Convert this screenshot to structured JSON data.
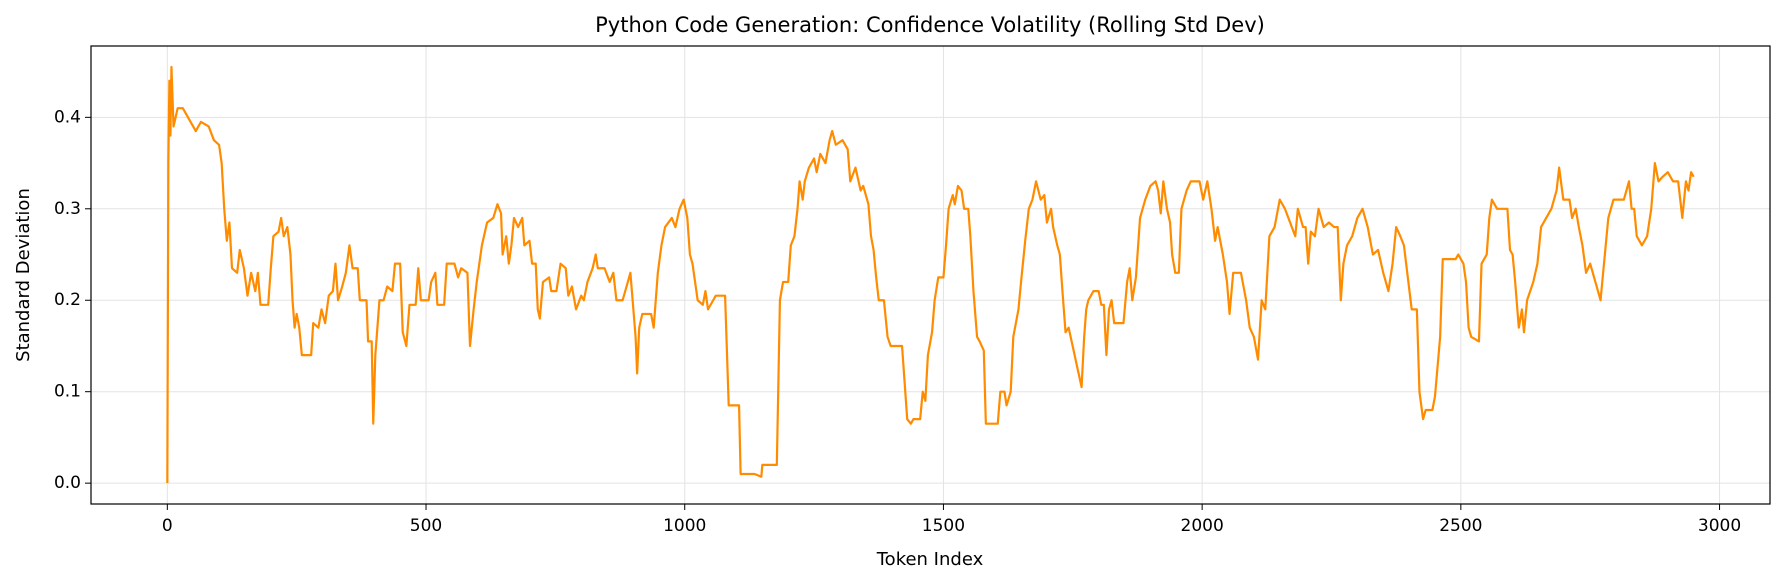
{
  "chart_data": {
    "type": "line",
    "title": "Python Code Generation: Confidence Volatility (Rolling Std Dev)",
    "x_label": "Token Index",
    "y_label": "Standard Deviation",
    "xlim": [
      -147.5,
      3097.5
    ],
    "xticks": [
      0,
      500,
      1000,
      1500,
      2000,
      2500,
      3000
    ],
    "ylim": [
      -0.0228,
      0.478
    ],
    "yticks": [
      {
        "value": 0,
        "label": "0.0"
      },
      0.1,
      0.2,
      0.3,
      0.4
    ],
    "grid": true,
    "x": [
      0,
      2,
      4,
      6,
      8,
      12,
      20,
      30,
      45,
      55,
      65,
      80,
      90,
      100,
      105,
      110,
      115,
      120,
      125,
      135,
      140,
      148,
      155,
      162,
      170,
      175,
      180,
      195,
      200,
      205,
      215,
      220,
      225,
      232,
      238,
      242,
      246,
      250,
      255,
      260,
      278,
      282,
      292,
      298,
      305,
      312,
      320,
      325,
      330,
      338,
      345,
      352,
      358,
      368,
      372,
      385,
      388,
      395,
      398,
      402,
      410,
      418,
      425,
      435,
      440,
      450,
      455,
      462,
      468,
      480,
      485,
      490,
      505,
      510,
      518,
      522,
      535,
      540,
      555,
      562,
      568,
      580,
      585,
      592,
      598,
      608,
      618,
      630,
      638,
      645,
      648,
      655,
      660,
      665,
      670,
      678,
      686,
      690,
      700,
      705,
      712,
      716,
      720,
      726,
      738,
      742,
      752,
      760,
      770,
      775,
      782,
      790,
      800,
      805,
      812,
      822,
      828,
      832,
      845,
      855,
      862,
      868,
      880,
      895,
      905,
      908,
      912,
      918,
      935,
      940,
      948,
      955,
      962,
      975,
      982,
      990,
      998,
      1005,
      1010,
      1015,
      1020,
      1025,
      1035,
      1040,
      1045,
      1055,
      1060,
      1078,
      1085,
      1105,
      1108,
      1135,
      1148,
      1150,
      1178,
      1184,
      1190,
      1200,
      1205,
      1212,
      1218,
      1222,
      1228,
      1232,
      1240,
      1250,
      1255,
      1262,
      1272,
      1280,
      1285,
      1292,
      1305,
      1315,
      1320,
      1330,
      1340,
      1345,
      1355,
      1360,
      1365,
      1370,
      1375,
      1385,
      1392,
      1398,
      1420,
      1430,
      1437,
      1442,
      1455,
      1460,
      1465,
      1470,
      1478,
      1483,
      1490,
      1500,
      1505,
      1510,
      1518,
      1522,
      1528,
      1535,
      1540,
      1548,
      1552,
      1558,
      1565,
      1570,
      1578,
      1582,
      1605,
      1610,
      1618,
      1622,
      1630,
      1635,
      1645,
      1650,
      1658,
      1665,
      1672,
      1679,
      1688,
      1695,
      1700,
      1708,
      1712,
      1720,
      1725,
      1730,
      1736,
      1742,
      1767,
      1772,
      1776,
      1780,
      1790,
      1800,
      1805,
      1810,
      1815,
      1820,
      1825,
      1830,
      1848,
      1855,
      1860,
      1865,
      1872,
      1880,
      1890,
      1900,
      1910,
      1915,
      1920,
      1925,
      1932,
      1938,
      1942,
      1948,
      1955,
      1960,
      1970,
      1978,
      1995,
      2002,
      2010,
      2018,
      2025,
      2030,
      2040,
      2048,
      2053,
      2060,
      2075,
      2085,
      2092,
      2100,
      2108,
      2115,
      2122,
      2130,
      2140,
      2150,
      2160,
      2170,
      2180,
      2185,
      2195,
      2200,
      2205,
      2210,
      2218,
      2225,
      2235,
      2245,
      2255,
      2262,
      2268,
      2273,
      2280,
      2290,
      2300,
      2310,
      2320,
      2330,
      2340,
      2350,
      2360,
      2368,
      2375,
      2383,
      2390,
      2405,
      2415,
      2420,
      2427,
      2432,
      2445,
      2450,
      2460,
      2465,
      2490,
      2495,
      2505,
      2510,
      2515,
      2520,
      2535,
      2540,
      2550,
      2555,
      2560,
      2570,
      2590,
      2595,
      2600,
      2605,
      2612,
      2618,
      2622,
      2628,
      2640,
      2648,
      2655,
      2665,
      2675,
      2685,
      2690,
      2698,
      2710,
      2715,
      2722,
      2728,
      2735,
      2742,
      2750,
      2760,
      2770,
      2775,
      2785,
      2795,
      2805,
      2815,
      2825,
      2830,
      2835,
      2840,
      2850,
      2860,
      2868,
      2875,
      2882,
      2890,
      2900,
      2910,
      2920,
      2928,
      2935,
      2940,
      2945,
      2950
    ],
    "series": [
      {
        "color": "#ff8c00",
        "values": [
          0,
          0.35,
          0.44,
          0.38,
          0.455,
          0.39,
          0.41,
          0.41,
          0.395,
          0.385,
          0.395,
          0.39,
          0.375,
          0.37,
          0.35,
          0.3,
          0.265,
          0.285,
          0.235,
          0.23,
          0.255,
          0.235,
          0.205,
          0.23,
          0.21,
          0.23,
          0.195,
          0.195,
          0.235,
          0.27,
          0.275,
          0.29,
          0.27,
          0.28,
          0.25,
          0.2,
          0.17,
          0.185,
          0.17,
          0.14,
          0.14,
          0.175,
          0.17,
          0.19,
          0.175,
          0.205,
          0.21,
          0.24,
          0.2,
          0.215,
          0.23,
          0.26,
          0.235,
          0.235,
          0.2,
          0.2,
          0.155,
          0.155,
          0.065,
          0.14,
          0.2,
          0.2,
          0.215,
          0.21,
          0.24,
          0.24,
          0.165,
          0.15,
          0.195,
          0.195,
          0.235,
          0.2,
          0.2,
          0.22,
          0.23,
          0.195,
          0.195,
          0.24,
          0.24,
          0.225,
          0.235,
          0.23,
          0.15,
          0.19,
          0.22,
          0.26,
          0.285,
          0.29,
          0.305,
          0.295,
          0.25,
          0.27,
          0.24,
          0.26,
          0.29,
          0.28,
          0.29,
          0.26,
          0.265,
          0.24,
          0.24,
          0.19,
          0.18,
          0.22,
          0.225,
          0.21,
          0.21,
          0.24,
          0.235,
          0.205,
          0.215,
          0.19,
          0.205,
          0.2,
          0.22,
          0.235,
          0.25,
          0.235,
          0.235,
          0.22,
          0.23,
          0.2,
          0.2,
          0.23,
          0.16,
          0.12,
          0.17,
          0.185,
          0.185,
          0.17,
          0.23,
          0.26,
          0.28,
          0.29,
          0.28,
          0.3,
          0.31,
          0.29,
          0.25,
          0.24,
          0.22,
          0.2,
          0.195,
          0.21,
          0.19,
          0.2,
          0.205,
          0.205,
          0.085,
          0.085,
          0.01,
          0.01,
          0.007,
          0.02,
          0.02,
          0.2,
          0.22,
          0.22,
          0.26,
          0.27,
          0.3,
          0.33,
          0.31,
          0.33,
          0.345,
          0.355,
          0.34,
          0.36,
          0.35,
          0.375,
          0.385,
          0.37,
          0.375,
          0.365,
          0.33,
          0.345,
          0.32,
          0.325,
          0.305,
          0.27,
          0.255,
          0.225,
          0.2,
          0.2,
          0.16,
          0.15,
          0.15,
          0.07,
          0.065,
          0.07,
          0.07,
          0.1,
          0.09,
          0.14,
          0.165,
          0.2,
          0.225,
          0.225,
          0.26,
          0.3,
          0.315,
          0.305,
          0.325,
          0.32,
          0.3,
          0.3,
          0.27,
          0.21,
          0.16,
          0.155,
          0.145,
          0.065,
          0.065,
          0.1,
          0.1,
          0.085,
          0.1,
          0.16,
          0.19,
          0.22,
          0.265,
          0.3,
          0.31,
          0.33,
          0.31,
          0.315,
          0.285,
          0.3,
          0.28,
          0.26,
          0.25,
          0.21,
          0.165,
          0.17,
          0.105,
          0.16,
          0.19,
          0.2,
          0.21,
          0.21,
          0.195,
          0.195,
          0.14,
          0.19,
          0.2,
          0.175,
          0.175,
          0.22,
          0.235,
          0.2,
          0.225,
          0.29,
          0.31,
          0.325,
          0.33,
          0.32,
          0.295,
          0.33,
          0.3,
          0.285,
          0.25,
          0.23,
          0.23,
          0.3,
          0.32,
          0.33,
          0.33,
          0.31,
          0.33,
          0.3,
          0.265,
          0.28,
          0.25,
          0.22,
          0.185,
          0.23,
          0.23,
          0.2,
          0.17,
          0.16,
          0.135,
          0.2,
          0.19,
          0.27,
          0.28,
          0.31,
          0.3,
          0.285,
          0.27,
          0.3,
          0.28,
          0.28,
          0.24,
          0.275,
          0.27,
          0.3,
          0.28,
          0.285,
          0.28,
          0.28,
          0.2,
          0.24,
          0.26,
          0.27,
          0.29,
          0.3,
          0.28,
          0.25,
          0.255,
          0.23,
          0.21,
          0.24,
          0.28,
          0.27,
          0.26,
          0.19,
          0.19,
          0.1,
          0.07,
          0.08,
          0.08,
          0.095,
          0.16,
          0.245,
          0.245,
          0.25,
          0.24,
          0.22,
          0.17,
          0.16,
          0.155,
          0.24,
          0.25,
          0.29,
          0.31,
          0.3,
          0.3,
          0.255,
          0.25,
          0.22,
          0.17,
          0.19,
          0.165,
          0.2,
          0.22,
          0.24,
          0.28,
          0.29,
          0.3,
          0.32,
          0.345,
          0.31,
          0.31,
          0.29,
          0.3,
          0.28,
          0.26,
          0.23,
          0.24,
          0.22,
          0.2,
          0.23,
          0.29,
          0.31,
          0.31,
          0.31,
          0.33,
          0.3,
          0.3,
          0.27,
          0.26,
          0.27,
          0.3,
          0.35,
          0.33,
          0.335,
          0.34,
          0.33,
          0.33,
          0.29,
          0.33,
          0.32,
          0.34,
          0.335
        ]
      }
    ]
  }
}
